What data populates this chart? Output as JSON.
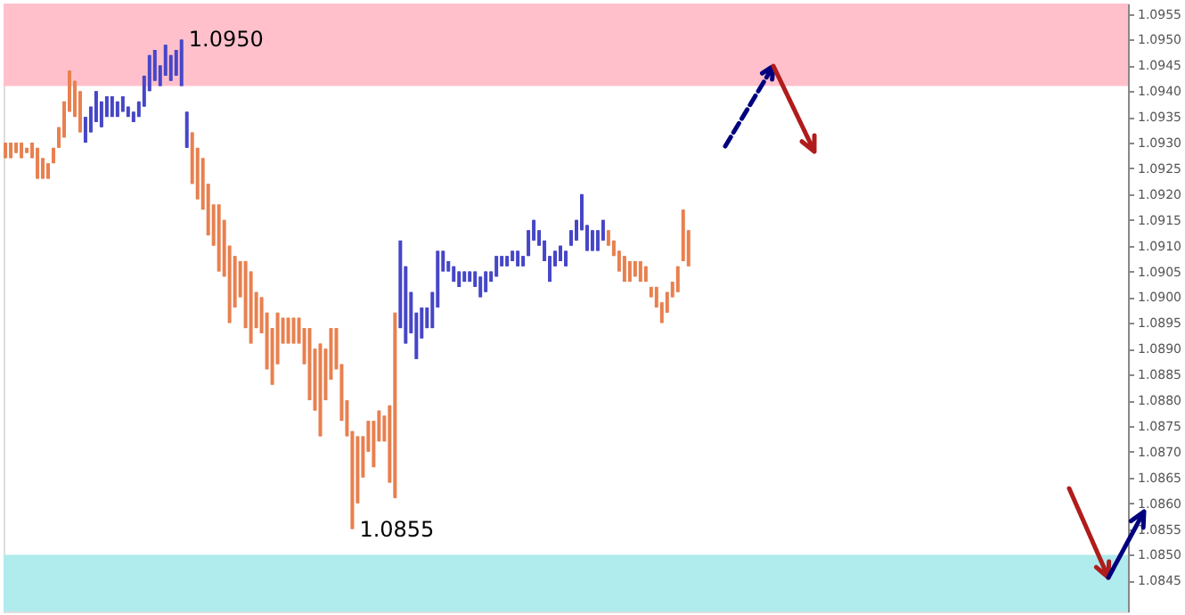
{
  "chart_data": {
    "type": "candlestick",
    "ylim": [
      1.0839,
      1.0957
    ],
    "yticks": [
      1.0845,
      {
        "value": 1.085,
        "label": "1.0850"
      },
      1.0855,
      {
        "value": 1.086,
        "label": "1.0860"
      },
      1.0865,
      {
        "value": 1.087,
        "label": "1.0870"
      },
      1.0875,
      {
        "value": 1.088,
        "label": "1.0880"
      },
      1.0885,
      {
        "value": 1.089,
        "label": "1.0890"
      },
      1.0895,
      {
        "value": 1.09,
        "label": "1.0900"
      },
      1.0905,
      {
        "value": 1.091,
        "label": "1.0910"
      },
      1.0915,
      {
        "value": 1.092,
        "label": "1.0920"
      },
      1.0925,
      {
        "value": 1.093,
        "label": "1.0930"
      },
      1.0935,
      {
        "value": 1.094,
        "label": "1.0940"
      },
      1.0945,
      {
        "value": 1.095,
        "label": "1.0950"
      },
      1.0955
    ],
    "tick_labels": "y",
    "grid": false,
    "bands": [
      {
        "axis": "y",
        "from": 1.0941,
        "to": 1.0957,
        "color": "#ffc0cb"
      },
      {
        "axis": "y",
        "from": 1.0839,
        "to": 1.085,
        "color": "#b0ebee"
      }
    ],
    "annotations": [
      "1.0950",
      "1.0855"
    ],
    "categories": [
      null,
      null,
      null,
      null,
      null,
      null,
      null,
      null,
      null,
      null,
      null,
      null,
      null,
      null,
      null,
      null,
      null,
      null,
      null,
      null,
      null,
      null,
      null,
      null,
      null,
      null,
      null,
      null,
      null,
      null,
      null,
      null,
      null,
      null,
      null,
      null,
      null,
      null,
      null,
      null,
      null,
      null,
      null,
      null,
      null,
      null,
      null,
      null,
      null,
      null,
      null,
      null,
      null,
      null,
      null,
      null,
      null,
      null,
      null,
      null,
      null,
      null,
      null,
      null,
      null,
      null,
      null,
      null,
      null,
      null,
      null,
      null,
      null,
      null,
      null,
      null,
      null,
      null,
      null,
      null,
      null,
      null,
      null,
      null,
      null,
      null,
      null,
      null,
      null,
      null,
      null,
      null,
      null,
      null,
      null,
      null,
      null,
      null,
      null,
      null,
      null,
      null,
      null,
      null,
      null,
      null,
      null,
      null,
      null,
      null,
      null,
      null,
      null,
      null,
      null,
      null,
      null,
      null,
      null,
      null,
      null,
      null,
      null,
      null,
      null,
      null,
      null,
      null,
      null,
      null,
      null,
      null,
      null,
      null,
      null,
      null,
      null,
      null,
      null,
      null,
      null,
      null,
      null,
      null,
      null,
      null,
      null,
      null,
      null,
      null,
      null,
      null,
      null,
      null,
      null,
      null,
      null,
      null,
      null,
      null,
      null,
      null,
      null,
      null,
      null,
      null,
      null,
      null,
      null,
      null,
      null,
      null,
      null,
      null,
      null,
      null,
      null,
      null,
      null,
      null,
      null,
      null,
      null,
      null,
      null,
      null,
      null,
      null,
      null,
      null,
      null,
      null,
      null,
      null,
      null,
      null,
      null,
      null,
      null,
      null,
      null,
      null,
      null,
      null,
      null,
      null,
      null,
      null,
      null,
      null,
      null
    ],
    "colors": [
      "#e8804f",
      "#e8804f",
      "#e8804f",
      "#e8804f",
      "#e8804f",
      "#e8804f",
      "#e8804f",
      "#e8804f",
      "#e8804f",
      "#e8804f",
      "#e8804f",
      "#e8804f",
      "#e8804f",
      "#e8804f",
      "#e8804f",
      "#4646c8",
      "#4646c8",
      "#4646c8",
      "#4646c8",
      "#4646c8",
      "#4646c8",
      "#4646c8",
      "#4646c8",
      "#4646c8",
      "#4646c8",
      "#4646c8",
      "#4646c8",
      "#4646c8",
      "#4646c8",
      "#4646c8",
      "#4646c8",
      "#4646c8",
      "#4646c8",
      "#4646c8",
      "#4646c8",
      "#e8804f",
      "#e8804f",
      "#e8804f",
      "#e8804f",
      "#e8804f",
      "#e8804f",
      "#e8804f",
      "#e8804f",
      "#e8804f",
      "#e8804f",
      "#e8804f",
      "#e8804f",
      "#e8804f",
      "#e8804f",
      "#e8804f",
      "#e8804f",
      "#e8804f",
      "#e8804f",
      "#e8804f",
      "#e8804f",
      "#e8804f",
      "#e8804f",
      "#e8804f",
      "#e8804f",
      "#e8804f",
      "#e8804f",
      "#e8804f",
      "#e8804f",
      "#e8804f",
      "#e8804f",
      "#e8804f",
      "#e8804f",
      "#e8804f",
      "#e8804f",
      "#e8804f",
      "#e8804f",
      "#e8804f",
      "#e8804f",
      "#e8804f",
      "#4646c8",
      "#4646c8",
      "#4646c8",
      "#4646c8",
      "#4646c8",
      "#4646c8",
      "#4646c8",
      "#4646c8",
      "#4646c8",
      "#4646c8",
      "#4646c8",
      "#4646c8",
      "#4646c8",
      "#4646c8",
      "#4646c8",
      "#4646c8",
      "#4646c8",
      "#4646c8",
      "#4646c8",
      "#4646c8",
      "#4646c8",
      "#4646c8",
      "#4646c8",
      "#4646c8",
      "#4646c8",
      "#4646c8",
      "#4646c8",
      "#4646c8",
      "#4646c8",
      "#4646c8",
      "#4646c8",
      "#4646c8",
      "#4646c8",
      "#4646c8",
      "#4646c8",
      "#4646c8",
      "#4646c8",
      "#4646c8",
      "#4646c8",
      "#e8804f",
      "#e8804f",
      "#e8804f",
      "#e8804f",
      "#e8804f",
      "#e8804f",
      "#e8804f",
      "#e8804f",
      "#e8804f",
      "#e8804f",
      "#e8804f",
      "#e8804f",
      "#e8804f",
      "#e8804f",
      "#e8804f",
      "#e8804f",
      null,
      null,
      null,
      null,
      null,
      null,
      null,
      null,
      null,
      null,
      null,
      null,
      null,
      null,
      null,
      null,
      null,
      null,
      null,
      null,
      null,
      null,
      null,
      null,
      null,
      null,
      null,
      null,
      null,
      null,
      null,
      null,
      null,
      null,
      null,
      null,
      null,
      null,
      null,
      null,
      null,
      null,
      null,
      null,
      null,
      null,
      null,
      null,
      null,
      null,
      null,
      null,
      null,
      null,
      null,
      null,
      null,
      null,
      null,
      null,
      null,
      null,
      null,
      null,
      null,
      null,
      null,
      null,
      null,
      null,
      null,
      null,
      null,
      null,
      null,
      null,
      null,
      null,
      null,
      null,
      null,
      null
    ],
    "ohlc": [
      [
        1.093,
        1.093,
        1.0927,
        1.0927
      ],
      [
        1.093,
        1.093,
        1.0927,
        1.0927
      ],
      [
        1.093,
        1.093,
        1.0928,
        1.0928
      ],
      [
        1.093,
        1.093,
        1.0927,
        1.0927
      ],
      [
        1.0929,
        1.0929,
        1.0928,
        1.0928
      ],
      [
        1.093,
        1.093,
        1.0927,
        1.0927
      ],
      [
        1.0929,
        1.0929,
        1.0923,
        1.0923
      ],
      [
        1.0927,
        1.0927,
        1.0923,
        1.0923
      ],
      [
        1.0926,
        1.0926,
        1.0923,
        1.0923
      ],
      [
        1.0929,
        1.0929,
        1.0926,
        1.0926
      ],
      [
        1.0933,
        1.0933,
        1.0929,
        1.0929
      ],
      [
        1.0938,
        1.0938,
        1.0931,
        1.0931
      ],
      [
        1.0944,
        1.0944,
        1.0936,
        1.0936
      ],
      [
        1.0942,
        1.0942,
        1.0935,
        1.0935
      ],
      [
        1.094,
        1.094,
        1.0932,
        1.0932
      ],
      [
        1.093,
        1.0935,
        1.093,
        1.0935
      ],
      [
        1.0932,
        1.0937,
        1.0932,
        1.0937
      ],
      [
        1.0934,
        1.094,
        1.0934,
        1.094
      ],
      [
        1.0933,
        1.0938,
        1.0933,
        1.0938
      ],
      [
        1.0935,
        1.0939,
        1.0935,
        1.0939
      ],
      [
        1.0935,
        1.0939,
        1.0935,
        1.0939
      ],
      [
        1.0935,
        1.0938,
        1.0935,
        1.0938
      ],
      [
        1.0936,
        1.0939,
        1.0936,
        1.0939
      ],
      [
        1.0935,
        1.0937,
        1.0935,
        1.0937
      ],
      [
        1.0934,
        1.0936,
        1.0934,
        1.0936
      ],
      [
        1.0935,
        1.0938,
        1.0935,
        1.0938
      ],
      [
        1.0937,
        1.0943,
        1.0937,
        1.0943
      ],
      [
        1.094,
        1.0947,
        1.094,
        1.0947
      ],
      [
        1.0942,
        1.0948,
        1.0942,
        1.0948
      ],
      [
        1.0941,
        1.0945,
        1.0941,
        1.0945
      ],
      [
        1.0943,
        1.0949,
        1.0943,
        1.0949
      ],
      [
        1.0942,
        1.0947,
        1.0942,
        1.0947
      ],
      [
        1.0943,
        1.0948,
        1.0943,
        1.0948
      ],
      [
        1.0941,
        1.095,
        1.0941,
        1.095
      ],
      [
        1.0929,
        1.0936,
        1.0929,
        1.0936
      ],
      [
        1.0932,
        1.0932,
        1.0922,
        1.0922
      ],
      [
        1.0929,
        1.0929,
        1.0919,
        1.0919
      ],
      [
        1.0927,
        1.0927,
        1.0917,
        1.0917
      ],
      [
        1.0922,
        1.0922,
        1.0912,
        1.0912
      ],
      [
        1.0918,
        1.0918,
        1.091,
        1.091
      ],
      [
        1.0918,
        1.0918,
        1.0905,
        1.0905
      ],
      [
        1.0915,
        1.0915,
        1.0904,
        1.0904
      ],
      [
        1.091,
        1.091,
        1.0895,
        1.0895
      ],
      [
        1.0908,
        1.0908,
        1.0898,
        1.0898
      ],
      [
        1.0907,
        1.0907,
        1.09,
        1.09
      ],
      [
        1.0907,
        1.0907,
        1.0894,
        1.0894
      ],
      [
        1.0905,
        1.0905,
        1.0891,
        1.0891
      ],
      [
        1.0901,
        1.0901,
        1.0894,
        1.0894
      ],
      [
        1.09,
        1.09,
        1.0893,
        1.0893
      ],
      [
        1.0897,
        1.0897,
        1.0886,
        1.0886
      ],
      [
        1.0894,
        1.0894,
        1.0883,
        1.0883
      ],
      [
        1.0897,
        1.0897,
        1.0887,
        1.0887
      ],
      [
        1.0896,
        1.0896,
        1.0891,
        1.0891
      ],
      [
        1.0896,
        1.0896,
        1.0891,
        1.0891
      ],
      [
        1.0896,
        1.0896,
        1.0891,
        1.0891
      ],
      [
        1.0896,
        1.0896,
        1.0891,
        1.0891
      ],
      [
        1.0894,
        1.0894,
        1.0887,
        1.0887
      ],
      [
        1.0894,
        1.0894,
        1.088,
        1.088
      ],
      [
        1.089,
        1.089,
        1.0878,
        1.0878
      ],
      [
        1.0891,
        1.0891,
        1.0873,
        1.0873
      ],
      [
        1.089,
        1.089,
        1.088,
        1.088
      ],
      [
        1.0894,
        1.0894,
        1.0884,
        1.0884
      ],
      [
        1.0894,
        1.0894,
        1.0886,
        1.0886
      ],
      [
        1.0887,
        1.0887,
        1.0876,
        1.0876
      ],
      [
        1.088,
        1.088,
        1.0873,
        1.0873
      ],
      [
        1.0874,
        1.0874,
        1.0855,
        1.0855
      ],
      [
        1.0873,
        1.0873,
        1.086,
        1.086
      ],
      [
        1.0873,
        1.0873,
        1.0865,
        1.0865
      ],
      [
        1.0876,
        1.0876,
        1.087,
        1.087
      ],
      [
        1.0876,
        1.0876,
        1.0867,
        1.0867
      ],
      [
        1.0878,
        1.0878,
        1.0872,
        1.0872
      ],
      [
        1.0877,
        1.0877,
        1.0872,
        1.0872
      ],
      [
        1.0879,
        1.0879,
        1.0864,
        1.0864
      ],
      [
        1.0897,
        1.0897,
        1.0861,
        1.0861
      ],
      [
        1.0894,
        1.0911,
        1.0894,
        1.0911
      ],
      [
        1.0891,
        1.0906,
        1.0891,
        1.0906
      ],
      [
        1.0893,
        1.0901,
        1.0893,
        1.0901
      ],
      [
        1.0888,
        1.0897,
        1.0888,
        1.0897
      ],
      [
        1.0892,
        1.0898,
        1.0892,
        1.0898
      ],
      [
        1.0894,
        1.0898,
        1.0894,
        1.0898
      ],
      [
        1.0894,
        1.0901,
        1.0894,
        1.0901
      ],
      [
        1.0898,
        1.0909,
        1.0898,
        1.0909
      ],
      [
        1.0905,
        1.0909,
        1.0905,
        1.0909
      ],
      [
        1.0905,
        1.0907,
        1.0905,
        1.0907
      ],
      [
        1.0903,
        1.0906,
        1.0903,
        1.0906
      ],
      [
        1.0902,
        1.0905,
        1.0902,
        1.0905
      ],
      [
        1.0903,
        1.0905,
        1.0903,
        1.0905
      ],
      [
        1.0903,
        1.0905,
        1.0903,
        1.0905
      ],
      [
        1.0902,
        1.0905,
        1.0902,
        1.0905
      ],
      [
        1.09,
        1.0904,
        1.09,
        1.0904
      ],
      [
        1.0901,
        1.0905,
        1.0901,
        1.0905
      ],
      [
        1.0903,
        1.0905,
        1.0903,
        1.0905
      ],
      [
        1.0904,
        1.0908,
        1.0904,
        1.0908
      ],
      [
        1.0906,
        1.0908,
        1.0906,
        1.0908
      ],
      [
        1.0906,
        1.0908,
        1.0906,
        1.0908
      ],
      [
        1.0907,
        1.0909,
        1.0907,
        1.0909
      ],
      [
        1.0906,
        1.0909,
        1.0906,
        1.0909
      ],
      [
        1.0906,
        1.0908,
        1.0906,
        1.0908
      ],
      [
        1.0908,
        1.0913,
        1.0908,
        1.0913
      ],
      [
        1.0911,
        1.0915,
        1.0911,
        1.0915
      ],
      [
        1.091,
        1.0913,
        1.091,
        1.0913
      ],
      [
        1.0907,
        1.0911,
        1.0907,
        1.0911
      ],
      [
        1.0903,
        1.0908,
        1.0903,
        1.0908
      ],
      [
        1.0906,
        1.0909,
        1.0906,
        1.0909
      ],
      [
        1.0907,
        1.091,
        1.0907,
        1.091
      ],
      [
        1.0906,
        1.0909,
        1.0906,
        1.0909
      ],
      [
        1.091,
        1.0913,
        1.091,
        1.0913
      ],
      [
        1.0911,
        1.0915,
        1.0911,
        1.0915
      ],
      [
        1.0913,
        1.092,
        1.0913,
        1.092
      ],
      [
        1.0909,
        1.0914,
        1.0909,
        1.0914
      ],
      [
        1.0909,
        1.0913,
        1.0909,
        1.0913
      ],
      [
        1.0909,
        1.0913,
        1.0909,
        1.0913
      ],
      [
        1.0911,
        1.0915,
        1.0911,
        1.0915
      ],
      [
        1.0913,
        1.0913,
        1.091,
        1.091
      ],
      [
        1.0911,
        1.0911,
        1.0908,
        1.0908
      ],
      [
        1.0909,
        1.0909,
        1.0905,
        1.0905
      ],
      [
        1.0908,
        1.0908,
        1.0903,
        1.0903
      ],
      [
        1.0907,
        1.0907,
        1.0903,
        1.0903
      ],
      [
        1.0907,
        1.0907,
        1.0904,
        1.0904
      ],
      [
        1.0907,
        1.0907,
        1.0903,
        1.0903
      ],
      [
        1.0906,
        1.0906,
        1.0903,
        1.0903
      ],
      [
        1.0902,
        1.0902,
        1.09,
        1.09
      ],
      [
        1.0902,
        1.0902,
        1.0898,
        1.0898
      ],
      [
        1.0899,
        1.0899,
        1.0895,
        1.0895
      ],
      [
        1.0901,
        1.0901,
        1.0897,
        1.0897
      ],
      [
        1.0903,
        1.0903,
        1.09,
        1.09
      ],
      [
        1.0906,
        1.0906,
        1.0901,
        1.0901
      ],
      [
        1.0917,
        1.0917,
        1.0907,
        1.0907
      ],
      [
        1.0913,
        1.0913,
        1.0906,
        1.0906
      ],
      null,
      null,
      null,
      null,
      null,
      null,
      null,
      null,
      null,
      null,
      null,
      null,
      null,
      null,
      null,
      null,
      null,
      null,
      null,
      null,
      null,
      null,
      null,
      null,
      null,
      null,
      null,
      null,
      null,
      null,
      null,
      null,
      null,
      null,
      null,
      null,
      null,
      null,
      null,
      null,
      null,
      null,
      null,
      null,
      null,
      null,
      null,
      null,
      null,
      null,
      null,
      null,
      null,
      null,
      null,
      null,
      null,
      null,
      null,
      null,
      null,
      null,
      null,
      null,
      null,
      null,
      null,
      null,
      null,
      null,
      null,
      null,
      null,
      null,
      null,
      null,
      null,
      null,
      null,
      null,
      null,
      null
    ]
  }
}
